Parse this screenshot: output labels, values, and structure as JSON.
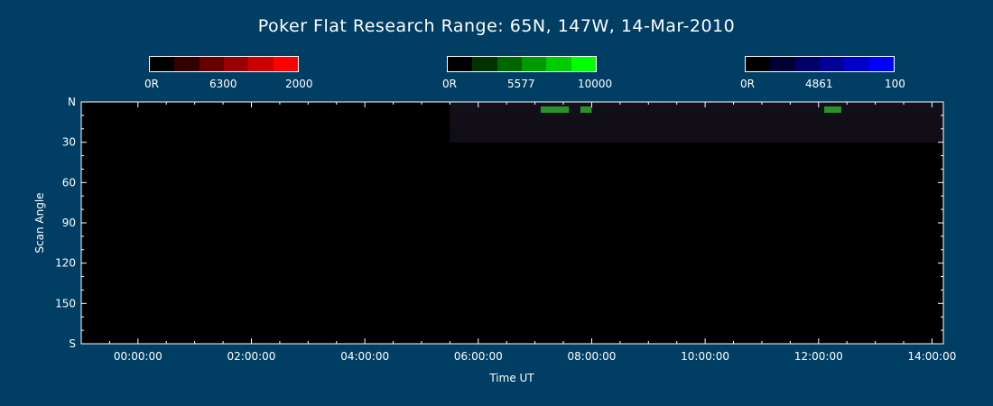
{
  "chart_data": {
    "type": "heatmap",
    "title": "Poker Flat Research Range: 65N, 147W, 14-Mar-2010",
    "xlabel": "Time UT",
    "ylabel": "Scan Angle",
    "x_ticks": [
      "00:00:00",
      "02:00:00",
      "04:00:00",
      "06:00:00",
      "08:00:00",
      "10:00:00",
      "12:00:00",
      "14:00:00"
    ],
    "x_tick_hours": [
      0,
      2,
      4,
      6,
      8,
      10,
      12,
      14
    ],
    "xlim_hours": [
      -1.0,
      14.2
    ],
    "y_ticks": [
      "N",
      "30",
      "60",
      "90",
      "120",
      "150",
      "S"
    ],
    "y_tick_values": [
      0,
      30,
      60,
      90,
      120,
      150,
      180
    ],
    "ylim": [
      0,
      180
    ],
    "data_start_hour": 5.5,
    "colorbars": [
      {
        "name": "6300",
        "min_label": "0R",
        "mid_label": "6300",
        "max_label": "2000",
        "color": "#ff0000"
      },
      {
        "name": "5577",
        "min_label": "0R",
        "mid_label": "5577",
        "max_label": "10000",
        "color": "#00ff00"
      },
      {
        "name": "4861",
        "min_label": "0R",
        "mid_label": "4861",
        "max_label": "100",
        "color": "#0000ff"
      }
    ],
    "grid": false
  }
}
